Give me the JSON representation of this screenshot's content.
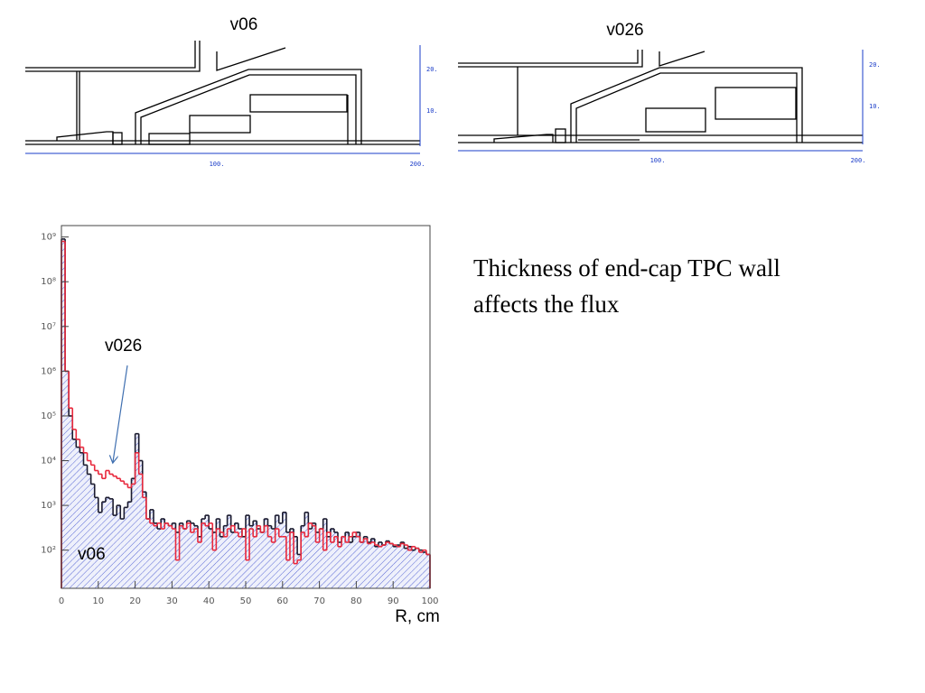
{
  "diagrams": [
    {
      "label": "v06",
      "x_ticks": [
        "100.",
        "200."
      ],
      "y_ticks": [
        "20.",
        "10."
      ]
    },
    {
      "label": "v026",
      "x_ticks": [
        "100.",
        "200."
      ],
      "y_ticks": [
        "20.",
        "10."
      ]
    }
  ],
  "caption": [
    "Thickness of end-cap TPC wall",
    "affects the flux"
  ],
  "chart_data": {
    "type": "histogram",
    "x_label": "R, cm",
    "annotations": [
      "v026",
      "v06"
    ],
    "log_y": true,
    "xlim": [
      0,
      100
    ],
    "ylim": [
      14,
      1800000000
    ],
    "xticks": [
      0,
      10,
      20,
      30,
      40,
      50,
      60,
      70,
      80,
      90,
      100
    ],
    "yticks": [
      {
        "value": 100,
        "label": "10²"
      },
      {
        "value": 1000,
        "label": "10³"
      },
      {
        "value": 10000,
        "label": "10⁴"
      },
      {
        "value": 100000,
        "label": "10⁵"
      },
      {
        "value": 1000000,
        "label": "10⁶"
      },
      {
        "value": 10000000,
        "label": "10⁷"
      },
      {
        "value": 100000000,
        "label": "10⁸"
      },
      {
        "value": 1000000000,
        "label": "10⁹"
      }
    ],
    "bins": [
      0,
      1,
      2,
      3,
      4,
      5,
      6,
      7,
      8,
      9,
      10,
      11,
      12,
      13,
      14,
      15,
      16,
      17,
      18,
      19,
      20,
      21,
      22,
      23,
      24,
      25,
      26,
      27,
      28,
      29,
      30,
      31,
      32,
      33,
      34,
      35,
      36,
      37,
      38,
      39,
      40,
      41,
      42,
      43,
      44,
      45,
      46,
      47,
      48,
      49,
      50,
      51,
      52,
      53,
      54,
      55,
      56,
      57,
      58,
      59,
      60,
      61,
      62,
      63,
      64,
      65,
      66,
      67,
      68,
      69,
      70,
      71,
      72,
      73,
      74,
      75,
      76,
      77,
      78,
      79,
      80,
      81,
      82,
      83,
      84,
      85,
      86,
      87,
      88,
      89,
      90,
      91,
      92,
      93,
      94,
      95,
      96,
      97,
      98,
      99,
      100
    ],
    "series": [
      {
        "name": "v06",
        "color": "#1a1a2e",
        "fill": "#4a5ad0",
        "values": [
          900000000,
          1000000,
          100000,
          30000,
          20000,
          15000,
          8000,
          5000,
          3000,
          1500,
          700,
          1200,
          1500,
          1400,
          600,
          1000,
          500,
          900,
          1200,
          4000,
          40000,
          10000,
          2000,
          500,
          800,
          400,
          300,
          500,
          400,
          350,
          400,
          250,
          400,
          300,
          450,
          400,
          350,
          200,
          500,
          600,
          300,
          250,
          500,
          200,
          350,
          600,
          250,
          400,
          300,
          200,
          600,
          350,
          450,
          300,
          250,
          500,
          350,
          300,
          600,
          400,
          700,
          250,
          300,
          200,
          80,
          350,
          700,
          300,
          400,
          250,
          300,
          500,
          200,
          300,
          250,
          150,
          200,
          250,
          150,
          200,
          250,
          150,
          200,
          150,
          180,
          120,
          150,
          130,
          160,
          140,
          120,
          130,
          150,
          110,
          120,
          100,
          110,
          100,
          90,
          80
        ]
      },
      {
        "name": "v026",
        "color": "#e8283c",
        "values": [
          800000000,
          1000000,
          150000,
          50000,
          30000,
          20000,
          15000,
          10000,
          8000,
          6000,
          5000,
          4000,
          6000,
          5000,
          4500,
          4000,
          3500,
          3000,
          2500,
          3000,
          15000,
          5000,
          1500,
          500,
          400,
          350,
          400,
          300,
          400,
          350,
          300,
          60,
          350,
          300,
          400,
          250,
          300,
          150,
          400,
          350,
          400,
          100,
          300,
          250,
          200,
          300,
          350,
          250,
          200,
          300,
          60,
          300,
          200,
          350,
          250,
          350,
          200,
          150,
          300,
          200,
          200,
          60,
          250,
          50,
          60,
          250,
          200,
          400,
          350,
          150,
          300,
          100,
          250,
          150,
          200,
          120,
          200,
          150,
          200,
          250,
          200,
          150,
          180,
          140,
          150,
          130,
          120,
          130,
          150,
          140,
          130,
          120,
          140,
          130,
          100,
          120,
          110,
          90,
          100,
          80
        ]
      }
    ]
  }
}
